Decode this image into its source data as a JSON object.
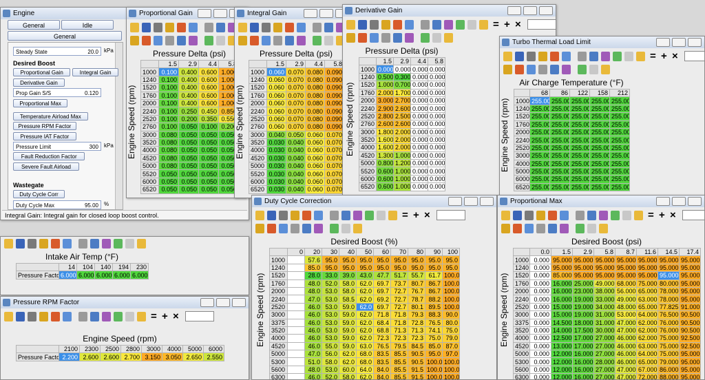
{
  "toolbar_symbols": [
    "=",
    "+",
    "×"
  ],
  "engine": {
    "title": "Engine",
    "tabs": [
      "General",
      "Idle"
    ],
    "subtab": "General",
    "items": [
      {
        "label": "Steady State",
        "value": "20.0",
        "unit": "kPa"
      },
      {
        "heading": "Desired Boost"
      },
      {
        "buttons": [
          "Proportional Gain",
          "Integral Gain"
        ]
      },
      {
        "buttons": [
          "Derivative Gain"
        ]
      },
      {
        "label": "Prop Gain S/S",
        "value": "0.120"
      },
      {
        "buttons": [
          "Proportional Max"
        ]
      },
      {
        "buttons": [
          "Temperature Airload Max"
        ]
      },
      {
        "buttons": [
          "Pressure RPM Factor"
        ]
      },
      {
        "buttons": [
          "Pressure IAT Factor"
        ]
      },
      {
        "label": "Pressure Limit",
        "value": "300",
        "unit": "kPa"
      },
      {
        "buttons": [
          "Fault Reduction Factor"
        ]
      },
      {
        "buttons": [
          "Severe Fault Airload"
        ]
      },
      {
        "heading": "Wastegate"
      },
      {
        "buttons": [
          "Duty Cycle Corr"
        ]
      },
      {
        "label": "Duty Cycle Max",
        "value": "95.00",
        "unit": "%"
      }
    ],
    "status": "Integral Gain: Integral gain for closed loop boost control."
  },
  "iat": {
    "x_axis_title": "Intake Air Temp (°F)",
    "columns": [
      "14",
      "104",
      "140",
      "194",
      "230"
    ],
    "rows": [
      "Pressure Factor"
    ],
    "values": [
      [
        "6.000",
        "6.000",
        "6.000",
        "6.000",
        "6.000"
      ]
    ],
    "selected": [
      0,
      0
    ]
  },
  "windows": [
    {
      "title": "Pressure RPM Factor",
      "x_axis_title": "Engine Speed (rpm)",
      "columns": [
        "2100",
        "2300",
        "2500",
        "2800",
        "3000",
        "4000",
        "5000",
        "6000"
      ],
      "rows": [
        "Pressure Factor"
      ],
      "values": [
        [
          "2.200",
          "2.600",
          "2.600",
          "2.700",
          "3.150",
          "3.050",
          "2.650",
          "2.550"
        ]
      ],
      "selected": [
        0,
        0
      ]
    },
    {
      "title": "Proportional Gain",
      "x_axis_title": "Pressure Delta (psi)",
      "y_axis_title": "Engine Speed (rpm)",
      "columns": [
        "1.5",
        "2.9",
        "4.4",
        "5.8"
      ],
      "rows": [
        "1000",
        "1240",
        "1520",
        "1760",
        "2000",
        "2240",
        "2520",
        "2760",
        "3000",
        "3520",
        "4000",
        "4520",
        "5000",
        "5520",
        "6000",
        "6520"
      ],
      "values": [
        [
          "0.100",
          "0.400",
          "0.600",
          "1.000"
        ],
        [
          "0.100",
          "0.400",
          "0.600",
          "1.000"
        ],
        [
          "0.100",
          "0.400",
          "0.600",
          "1.000"
        ],
        [
          "0.100",
          "0.400",
          "0.600",
          "1.000"
        ],
        [
          "0.100",
          "0.400",
          "0.600",
          "1.000"
        ],
        [
          "0.100",
          "0.250",
          "0.450",
          "0.850"
        ],
        [
          "0.100",
          "0.200",
          "0.350",
          "0.550"
        ],
        [
          "0.100",
          "0.050",
          "0.100",
          "0.200"
        ],
        [
          "0.080",
          "0.050",
          "0.050",
          "0.050"
        ],
        [
          "0.080",
          "0.050",
          "0.050",
          "0.050"
        ],
        [
          "0.080",
          "0.050",
          "0.050",
          "0.050"
        ],
        [
          "0.080",
          "0.050",
          "0.050",
          "0.050"
        ],
        [
          "0.080",
          "0.050",
          "0.050",
          "0.050"
        ],
        [
          "0.050",
          "0.050",
          "0.050",
          "0.050"
        ],
        [
          "0.050",
          "0.050",
          "0.050",
          "0.050"
        ],
        [
          "0.050",
          "0.050",
          "0.050",
          "0.050"
        ]
      ],
      "selected": [
        0,
        0
      ]
    },
    {
      "title": "Integral Gain",
      "x_axis_title": "Pressure Delta (psi)",
      "y_axis_title": "Engine Speed (rpm)",
      "columns": [
        "1.5",
        "2.9",
        "4.4",
        "5.8"
      ],
      "rows": [
        "1000",
        "1240",
        "1520",
        "1760",
        "2000",
        "2240",
        "2520",
        "2760",
        "3000",
        "3520",
        "4000",
        "4520",
        "5000",
        "5520",
        "6000",
        "6520"
      ],
      "values": [
        [
          "0.060",
          "0.070",
          "0.080",
          "0.090"
        ],
        [
          "0.060",
          "0.070",
          "0.080",
          "0.090"
        ],
        [
          "0.060",
          "0.070",
          "0.080",
          "0.090"
        ],
        [
          "0.060",
          "0.070",
          "0.080",
          "0.090"
        ],
        [
          "0.060",
          "0.070",
          "0.080",
          "0.090"
        ],
        [
          "0.060",
          "0.070",
          "0.080",
          "0.090"
        ],
        [
          "0.060",
          "0.070",
          "0.080",
          "0.090"
        ],
        [
          "0.060",
          "0.070",
          "0.080",
          "0.090"
        ],
        [
          "0.040",
          "0.050",
          "0.060",
          "0.070"
        ],
        [
          "0.030",
          "0.040",
          "0.060",
          "0.070"
        ],
        [
          "0.030",
          "0.040",
          "0.060",
          "0.070"
        ],
        [
          "0.030",
          "0.040",
          "0.060",
          "0.070"
        ],
        [
          "0.030",
          "0.040",
          "0.060",
          "0.070"
        ],
        [
          "0.030",
          "0.040",
          "0.060",
          "0.070"
        ],
        [
          "0.030",
          "0.040",
          "0.060",
          "0.070"
        ],
        [
          "0.030",
          "0.040",
          "0.060",
          "0.070"
        ]
      ],
      "selected": [
        0,
        0
      ]
    },
    {
      "title": "Derivative Gain",
      "x_axis_title": "Pressure Delta (psi)",
      "y_axis_title": "Engine Speed (rpm)",
      "columns": [
        "1.5",
        "2.9",
        "4.4",
        "5.8"
      ],
      "rows": [
        "1000",
        "1240",
        "1520",
        "1760",
        "2000",
        "2240",
        "2520",
        "2760",
        "3000",
        "3520",
        "4000",
        "4520",
        "5000",
        "5520",
        "6000",
        "6520"
      ],
      "values": [
        [
          "0.000",
          "0.000",
          "0.000",
          "0.000"
        ],
        [
          "0.500",
          "0.300",
          "0.000",
          "0.000"
        ],
        [
          "1.000",
          "0.700",
          "0.000",
          "0.000"
        ],
        [
          "2.000",
          "1.700",
          "0.000",
          "0.000"
        ],
        [
          "3.000",
          "2.700",
          "0.000",
          "0.000"
        ],
        [
          "2.900",
          "2.600",
          "0.000",
          "0.000"
        ],
        [
          "2.800",
          "2.500",
          "0.000",
          "0.000"
        ],
        [
          "2.600",
          "2.600",
          "0.000",
          "0.000"
        ],
        [
          "1.800",
          "2.000",
          "0.000",
          "0.000"
        ],
        [
          "1.600",
          "2.000",
          "0.000",
          "0.000"
        ],
        [
          "1.600",
          "2.000",
          "0.000",
          "0.000"
        ],
        [
          "1.300",
          "1.000",
          "0.000",
          "0.000"
        ],
        [
          "0.800",
          "1.200",
          "0.000",
          "0.000"
        ],
        [
          "0.600",
          "1.000",
          "0.000",
          "0.000"
        ],
        [
          "0.600",
          "1.000",
          "0.000",
          "0.000"
        ],
        [
          "0.600",
          "1.000",
          "0.000",
          "0.000"
        ]
      ],
      "selected": [
        0,
        0
      ]
    },
    {
      "title": "Turbo Thermal Load Limit",
      "x_axis_title": "Air Charge Temperature (°F)",
      "y_axis_title": "Engine Speed (rpm)",
      "columns": [
        "68",
        "86",
        "122",
        "158",
        "212"
      ],
      "rows": [
        "1000",
        "1240",
        "1520",
        "1760",
        "2000",
        "2240",
        "2520",
        "3000",
        "4000",
        "5000",
        "6000",
        "6520"
      ],
      "values": [
        [
          "255.00",
          "255.00",
          "255.00",
          "255.00",
          "255.00"
        ],
        [
          "255.00",
          "255.00",
          "255.00",
          "255.00",
          "255.00"
        ],
        [
          "255.00",
          "255.00",
          "255.00",
          "255.00",
          "255.00"
        ],
        [
          "255.00",
          "255.00",
          "255.00",
          "255.00",
          "255.00"
        ],
        [
          "255.00",
          "255.00",
          "255.00",
          "255.00",
          "255.00"
        ],
        [
          "255.00",
          "255.00",
          "255.00",
          "255.00",
          "255.00"
        ],
        [
          "255.00",
          "255.00",
          "255.00",
          "255.00",
          "255.00"
        ],
        [
          "255.00",
          "255.00",
          "255.00",
          "255.00",
          "255.00"
        ],
        [
          "255.00",
          "255.00",
          "255.00",
          "255.00",
          "255.00"
        ],
        [
          "255.00",
          "255.00",
          "255.00",
          "255.00",
          "255.00"
        ],
        [
          "255.00",
          "255.00",
          "255.00",
          "255.00",
          "255.00"
        ],
        [
          "255.00",
          "255.00",
          "255.00",
          "255.00",
          "255.00"
        ]
      ],
      "selected": [
        0,
        0
      ]
    },
    {
      "title": "Duty Cycle Correction",
      "x_axis_title": "Desired Boost (%)",
      "y_axis_title": "Engine Speed (rpm)",
      "columns": [
        "0",
        "20",
        "30",
        "40",
        "50",
        "60",
        "70",
        "80",
        "90",
        "100"
      ],
      "rows": [
        "1000",
        "1240",
        "1520",
        "1760",
        "2000",
        "2240",
        "2520",
        "3000",
        "3375",
        "3520",
        "4000",
        "4520",
        "5000",
        "5300",
        "5600",
        "6300"
      ],
      "values": [
        [
          null,
          "57.6",
          "95.0",
          "95.0",
          "95.0",
          "95.0",
          "95.0",
          "95.0",
          "95.0",
          "95.0"
        ],
        [
          null,
          "85.0",
          "95.0",
          "95.0",
          "95.0",
          "95.0",
          "95.0",
          "95.0",
          "95.0",
          "95.0"
        ],
        [
          null,
          "28.0",
          "33.0",
          "39.0",
          "43.0",
          "47.7",
          "51.7",
          "55.7",
          "61.7",
          "100.0"
        ],
        [
          null,
          "48.0",
          "52.0",
          "58.0",
          "62.0",
          "69.7",
          "73.7",
          "80.7",
          "86.7",
          "100.0"
        ],
        [
          null,
          "48.0",
          "53.0",
          "58.0",
          "62.0",
          "69.7",
          "72.7",
          "76.7",
          "86.7",
          "100.0"
        ],
        [
          null,
          "47.0",
          "53.0",
          "58.5",
          "62.0",
          "69.2",
          "72.7",
          "78.7",
          "88.2",
          "100.0"
        ],
        [
          null,
          "46.0",
          "53.0",
          "59.0",
          "62.0",
          "69.7",
          "72.7",
          "80.1",
          "89.5",
          "100.0"
        ],
        [
          null,
          "46.0",
          "53.0",
          "59.0",
          "62.0",
          "71.8",
          "71.8",
          "79.3",
          "88.3",
          "90.0"
        ],
        [
          null,
          "46.0",
          "53.0",
          "59.0",
          "62.0",
          "68.4",
          "71.8",
          "72.8",
          "76.5",
          "80.0"
        ],
        [
          null,
          "46.0",
          "53.0",
          "59.0",
          "62.0",
          "68.8",
          "71.3",
          "71.3",
          "74.1",
          "75.0"
        ],
        [
          null,
          "46.0",
          "53.0",
          "59.0",
          "62.0",
          "72.3",
          "72.3",
          "72.3",
          "75.0",
          "79.0"
        ],
        [
          null,
          "46.0",
          "55.0",
          "59.0",
          "63.0",
          "76.5",
          "79.5",
          "84.5",
          "85.0",
          "87.0"
        ],
        [
          null,
          "47.0",
          "56.0",
          "62.0",
          "68.0",
          "83.5",
          "85.5",
          "90.5",
          "95.0",
          "97.0"
        ],
        [
          null,
          "51.0",
          "58.0",
          "62.0",
          "68.0",
          "83.5",
          "85.5",
          "90.5",
          "100.0",
          "100.0"
        ],
        [
          null,
          "48.0",
          "53.0",
          "60.0",
          "64.0",
          "84.0",
          "85.5",
          "91.5",
          "100.0",
          "100.0"
        ],
        [
          null,
          "46.0",
          "52.0",
          "58.0",
          "62.0",
          "84.0",
          "85.5",
          "91.5",
          "100.0",
          "100.0"
        ]
      ],
      "selected": [
        6,
        4
      ]
    },
    {
      "title": "Proportional Max",
      "x_axis_title": "Desired Boost (psi)",
      "y_axis_title": "Engine Speed (rpm)",
      "columns": [
        "0.0",
        "1.5",
        "2.9",
        "5.8",
        "8.7",
        "11.6",
        "14.5",
        "17.4"
      ],
      "rows": [
        "1000",
        "1240",
        "1520",
        "1760",
        "2000",
        "2240",
        "2520",
        "3000",
        "3375",
        "3520",
        "4000",
        "4520",
        "5000",
        "5300",
        "5600",
        "6300"
      ],
      "values": [
        [
          "0.000",
          "95.000",
          "95.000",
          "95.000",
          "95.000",
          "95.000",
          "95.000",
          "95.000"
        ],
        [
          "0.000",
          "95.000",
          "95.000",
          "95.000",
          "95.000",
          "95.000",
          "95.000",
          "95.000"
        ],
        [
          "0.000",
          "85.000",
          "95.000",
          "95.000",
          "95.000",
          "95.000",
          "95.000",
          "95.000"
        ],
        [
          "0.000",
          "16.000",
          "25.000",
          "49.000",
          "68.000",
          "75.000",
          "80.000",
          "95.000"
        ],
        [
          "0.000",
          "16.000",
          "23.000",
          "38.000",
          "56.000",
          "65.000",
          "78.000",
          "95.000"
        ],
        [
          "0.000",
          "16.000",
          "19.000",
          "33.000",
          "49.000",
          "63.000",
          "78.000",
          "95.000"
        ],
        [
          "0.000",
          "15.000",
          "19.000",
          "34.000",
          "48.000",
          "65.000",
          "77.825",
          "91.000"
        ],
        [
          "0.000",
          "15.000",
          "19.000",
          "31.000",
          "53.000",
          "64.000",
          "76.500",
          "90.500"
        ],
        [
          "0.000",
          "14.500",
          "18.000",
          "31.000",
          "47.000",
          "62.000",
          "76.000",
          "90.500"
        ],
        [
          "0.000",
          "14.000",
          "17.500",
          "30.000",
          "47.000",
          "62.000",
          "76.000",
          "90.500"
        ],
        [
          "0.000",
          "12.500",
          "17.000",
          "27.000",
          "46.000",
          "62.000",
          "75.000",
          "92.500"
        ],
        [
          "0.000",
          "13.000",
          "17.000",
          "27.000",
          "46.000",
          "63.000",
          "75.000",
          "92.500"
        ],
        [
          "0.000",
          "12.000",
          "16.000",
          "27.000",
          "46.000",
          "64.000",
          "75.000",
          "95.000"
        ],
        [
          "0.000",
          "12.000",
          "16.000",
          "28.000",
          "46.000",
          "65.000",
          "79.000",
          "95.000"
        ],
        [
          "0.000",
          "12.000",
          "16.000",
          "27.000",
          "47.000",
          "67.000",
          "86.000",
          "95.000"
        ],
        [
          "0.000",
          "12.000",
          "16.000",
          "27.000",
          "47.000",
          "72.000",
          "88.000",
          "95.000"
        ]
      ],
      "selected": [
        2,
        6
      ]
    }
  ]
}
